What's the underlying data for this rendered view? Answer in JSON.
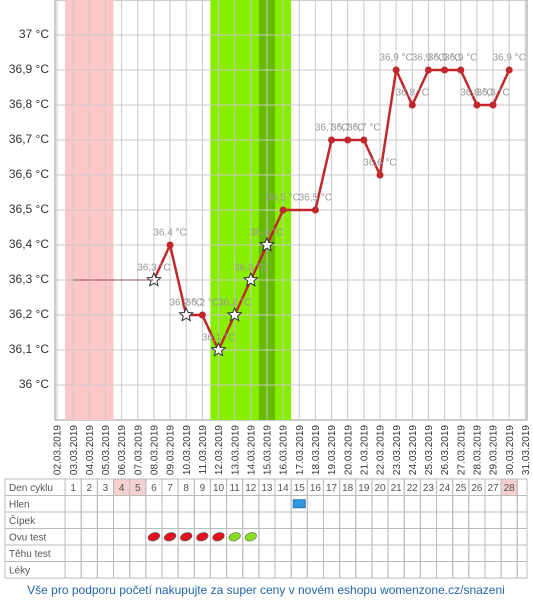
{
  "chart_data": {
    "type": "line",
    "categories": [
      "02.03.2019",
      "03.03.2019",
      "04.03.2019",
      "05.03.2019",
      "06.03.2019",
      "07.03.2019",
      "08.03.2019",
      "09.03.2019",
      "10.03.2019",
      "11.03.2019",
      "12.03.2019",
      "13.03.2019",
      "14.03.2019",
      "15.03.2019",
      "16.03.2019",
      "17.03.2019",
      "18.03.2019",
      "19.03.2019",
      "20.03.2019",
      "21.03.2019",
      "22.03.2019",
      "23.03.2019",
      "24.03.2019",
      "25.03.2019",
      "26.03.2019",
      "27.03.2019",
      "28.03.2019",
      "29.03.2019",
      "30.03.2019",
      "31.03.2019"
    ],
    "series": [
      {
        "color": "#c0282d",
        "connect_gaps": true,
        "values": [
          null,
          null,
          null,
          null,
          null,
          null,
          36.3,
          36.4,
          36.2,
          36.2,
          36.1,
          36.2,
          36.3,
          36.4,
          36.5,
          null,
          36.5,
          36.7,
          36.7,
          36.7,
          36.6,
          36.9,
          36.8,
          36.9,
          36.9,
          36.9,
          36.8,
          36.8,
          36.9,
          null
        ],
        "value_labels": [
          null,
          null,
          null,
          null,
          null,
          null,
          "36,3 °C",
          "36,4 °C",
          "36,2 °C",
          "36,2 °C",
          "36,1 °C",
          "36,2 °C",
          "36,3 °C",
          "36,4 °C",
          "36,5 °C",
          null,
          "36,5 °C",
          "36,7 °C",
          "36,7 °C",
          "36,7 °C",
          "36,6 °C",
          "36,9 °C",
          "36,8 °C",
          "36,9 °C",
          "36,9 °C",
          "36,9 °C",
          "36,8 °C",
          "36,8 °C",
          "36,9 °C",
          null
        ],
        "markers": [
          null,
          null,
          null,
          null,
          null,
          null,
          "star",
          "dot",
          "star",
          "dot",
          "star",
          "star",
          "star",
          "star",
          "dot",
          null,
          "dot",
          "dot",
          "dot",
          "dot",
          "dot",
          "dot",
          "dot",
          "dot",
          "dot",
          "dot",
          "dot",
          "dot",
          "dot",
          null
        ]
      },
      {
        "color": "#a05050",
        "thin": true,
        "values": [
          null,
          36.3,
          36.3,
          36.3,
          36.3,
          36.3,
          36.3,
          null,
          null,
          null,
          null,
          null,
          null,
          null,
          null,
          null,
          null,
          null,
          null,
          null,
          null,
          null,
          null,
          null,
          null,
          null,
          null,
          null,
          null,
          null
        ]
      }
    ],
    "bands": [
      {
        "from": "03.03.2019",
        "to": "05.03.2019",
        "color": "#ffc8c8"
      },
      {
        "from": "12.03.2019",
        "to": "16.03.2019",
        "color": "#88ee00"
      },
      {
        "from": "15.03.2019",
        "to": "15.03.2019",
        "color": "#66bb00"
      }
    ],
    "ylim": [
      35.9,
      37.1
    ],
    "yticks": [
      {
        "value": 36,
        "label": "36 °C"
      },
      {
        "value": 36.1,
        "label": "36,1 °C"
      },
      {
        "value": 36.2,
        "label": "36,2 °C"
      },
      {
        "value": 36.3,
        "label": "36,3 °C"
      },
      {
        "value": 36.4,
        "label": "36,4 °C"
      },
      {
        "value": 36.5,
        "label": "36,5 °C"
      },
      {
        "value": 36.6,
        "label": "36,6 °C"
      },
      {
        "value": 36.7,
        "label": "36,7 °C"
      },
      {
        "value": 36.8,
        "label": "36,8 °C"
      },
      {
        "value": 36.9,
        "label": "36,9 °C"
      },
      {
        "value": 37,
        "label": "37 °C"
      }
    ],
    "grid": true
  },
  "table": {
    "rows": [
      {
        "label": "Den cyklu",
        "days": [
          1,
          2,
          3,
          4,
          5,
          6,
          7,
          8,
          9,
          10,
          11,
          12,
          13,
          14,
          15,
          16,
          17,
          18,
          19,
          20,
          21,
          22,
          23,
          24,
          25,
          26,
          27,
          28
        ],
        "highlighted": [
          4,
          5,
          28
        ]
      },
      {
        "label": "Hlen",
        "entries": [
          {
            "day": 15,
            "color": "#3399dd",
            "shape": "square"
          }
        ]
      },
      {
        "label": "Čípek"
      },
      {
        "label": "Ovu test",
        "entries": [
          {
            "day": 6,
            "color": "#e0141e",
            "shape": "leaf"
          },
          {
            "day": 7,
            "color": "#e0141e",
            "shape": "leaf"
          },
          {
            "day": 8,
            "color": "#e0141e",
            "shape": "leaf"
          },
          {
            "day": 9,
            "color": "#e0141e",
            "shape": "leaf"
          },
          {
            "day": 10,
            "color": "#e0141e",
            "shape": "leaf"
          },
          {
            "day": 11,
            "color": "#88dd22",
            "shape": "leaf"
          },
          {
            "day": 12,
            "color": "#88dd22",
            "shape": "leaf"
          }
        ]
      },
      {
        "label": "Těhu test"
      },
      {
        "label": "Léky"
      }
    ]
  },
  "footer": "Vše pro podporu početí nakupujte za super ceny v novém eshopu womenzone.cz/snazeni"
}
